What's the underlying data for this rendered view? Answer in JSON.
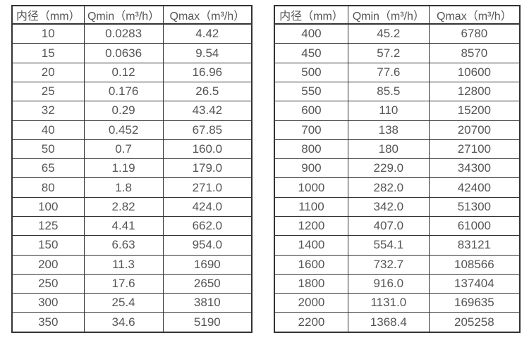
{
  "page": {
    "background": "#ffffff"
  },
  "colors": {
    "border": "#333333",
    "text": "#555555",
    "background": "#ffffff"
  },
  "tables": [
    {
      "name": "flow-table-small-diameters",
      "headers": [
        "内径（mm）",
        "Qmin（m³/h）",
        "Qmax（m³/h）"
      ],
      "rows": [
        [
          "10",
          "0.0283",
          "4.42"
        ],
        [
          "15",
          "0.0636",
          "9.54"
        ],
        [
          "20",
          "0.12",
          "16.96"
        ],
        [
          "25",
          "0.176",
          "26.5"
        ],
        [
          "32",
          "0.29",
          "43.42"
        ],
        [
          "40",
          "0.452",
          "67.85"
        ],
        [
          "50",
          "0.7",
          "160.0"
        ],
        [
          "65",
          "1.19",
          "179.0"
        ],
        [
          "80",
          "1.8",
          "271.0"
        ],
        [
          "100",
          "2.82",
          "424.0"
        ],
        [
          "125",
          "4.41",
          "662.0"
        ],
        [
          "150",
          "6.63",
          "954.0"
        ],
        [
          "200",
          "11.3",
          "1690"
        ],
        [
          "250",
          "17.6",
          "2650"
        ],
        [
          "300",
          "25.4",
          "3810"
        ],
        [
          "350",
          "34.6",
          "5190"
        ]
      ]
    },
    {
      "name": "flow-table-large-diameters",
      "headers": [
        "内径（mm）",
        "Qmin（m³/h）",
        "Qmax（m³/h）"
      ],
      "rows": [
        [
          "400",
          "45.2",
          "6780"
        ],
        [
          "450",
          "57.2",
          "8570"
        ],
        [
          "500",
          "77.6",
          "10600"
        ],
        [
          "550",
          "85.5",
          "12800"
        ],
        [
          "600",
          "110",
          "15200"
        ],
        [
          "700",
          "138",
          "20700"
        ],
        [
          "800",
          "180",
          "27100"
        ],
        [
          "900",
          "229.0",
          "34300"
        ],
        [
          "1000",
          "282.0",
          "42400"
        ],
        [
          "1100",
          "342.0",
          "51300"
        ],
        [
          "1200",
          "407.0",
          "61000"
        ],
        [
          "1400",
          "554.1",
          "83121"
        ],
        [
          "1600",
          "732.7",
          "108566"
        ],
        [
          "1800",
          "916.0",
          "137404"
        ],
        [
          "2000",
          "1131.0",
          "169635"
        ],
        [
          "2200",
          "1368.4",
          "205258"
        ]
      ]
    }
  ]
}
